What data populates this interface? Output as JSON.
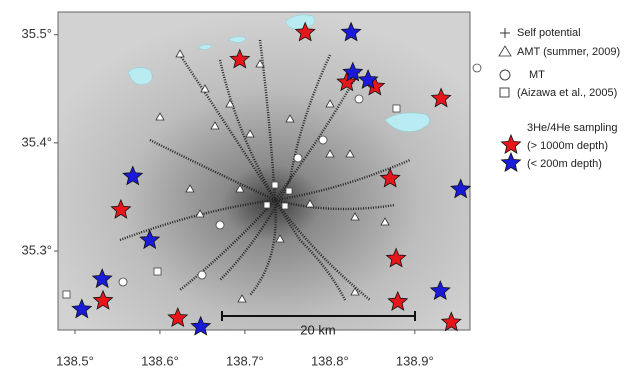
{
  "map": {
    "xlim": [
      138.48,
      138.965
    ],
    "ylim": [
      35.227,
      35.521
    ],
    "xticks": [
      {
        "value": 138.5,
        "label": "138.5°"
      },
      {
        "value": 138.6,
        "label": "138.6°"
      },
      {
        "value": 138.7,
        "label": "138.7°"
      },
      {
        "value": 138.8,
        "label": "138.8°"
      },
      {
        "value": 138.9,
        "label": "138.9°"
      }
    ],
    "yticks": [
      {
        "value": 35.3,
        "label": "35.3°"
      },
      {
        "value": 35.4,
        "label": "35.4°"
      },
      {
        "value": 35.5,
        "label": "35.5°"
      }
    ],
    "scale_label": "20 km",
    "legend": {
      "self_potential": "Self potential",
      "amt": "AMT (summer, 2009)",
      "mt": "MT",
      "aizawa": "(Aizawa et al., 2005)",
      "sampling": "3He/4He sampling"
    },
    "series": [
      {
        "name": "(> 1000m depth)",
        "color": "#e8161b",
        "lon": [
          138.694,
          138.771,
          138.82,
          138.853,
          138.931,
          138.871,
          138.554,
          138.878,
          138.533,
          138.88,
          138.943,
          138.621
        ],
        "lat": [
          35.477,
          35.502,
          35.456,
          35.452,
          35.441,
          35.367,
          35.338,
          35.293,
          35.254,
          35.253,
          35.234,
          35.238
        ]
      },
      {
        "name": "(< 200m depth)",
        "color": "#1a1adb",
        "lon": [
          138.825,
          138.827,
          138.845,
          138.568,
          138.954,
          138.588,
          138.532,
          138.508,
          138.93,
          138.648
        ],
        "lat": [
          35.502,
          35.465,
          35.458,
          35.369,
          35.357,
          35.31,
          35.274,
          35.246,
          35.263,
          35.23
        ]
      }
    ]
  }
}
